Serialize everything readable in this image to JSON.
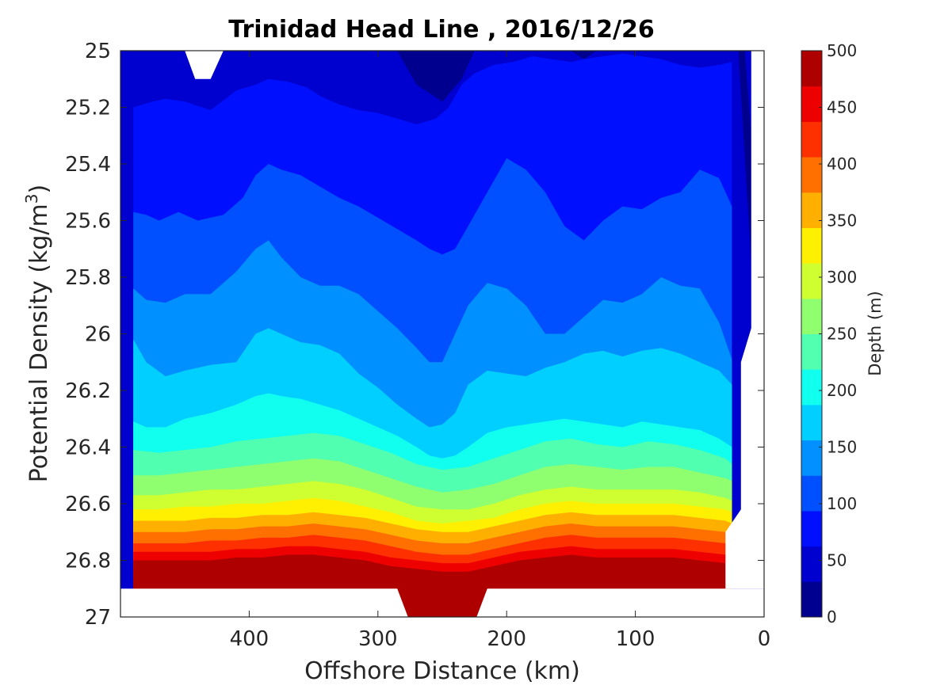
{
  "chart_data": {
    "type": "contour",
    "title": "Trinidad Head Line , 2016/12/26",
    "xlabel": "Offshore Distance (km)",
    "ylabel": "Potential Density (kg/m",
    "ylabel_sup": "3",
    "ylabel_close": ")",
    "x_reversed": true,
    "xlim": [
      0,
      500
    ],
    "ylim": [
      25,
      27
    ],
    "y_reversed": true,
    "x_ticks": [
      400,
      300,
      200,
      100,
      0
    ],
    "x_tick_labels": [
      "400",
      "300",
      "200",
      "100",
      "0"
    ],
    "y_ticks": [
      25,
      25.2,
      25.4,
      25.6,
      25.8,
      26,
      26.2,
      26.4,
      26.6,
      26.8,
      27
    ],
    "y_tick_labels": [
      "25",
      "25.2",
      "25.4",
      "25.6",
      "25.8",
      "26",
      "26.2",
      "26.4",
      "26.6",
      "26.8",
      "27"
    ],
    "grid": false,
    "colormap": "jet",
    "contour_levels": [
      0,
      25,
      50,
      75,
      100,
      125,
      150,
      175,
      200,
      225,
      250,
      275,
      300,
      325,
      350,
      375,
      400,
      425,
      450,
      475,
      500
    ],
    "level_colors": [
      "#00008f",
      "#0000cf",
      "#0010ff",
      "#0050ff",
      "#0090ff",
      "#00cfff",
      "#10ffef",
      "#50ffaf",
      "#90ff6f",
      "#cfff30",
      "#ffef00",
      "#ffaf00",
      "#ff7000",
      "#ff3000",
      "#ef0000",
      "#af0000"
    ],
    "contour_lines": [
      {
        "depth": 75,
        "x": [
          490,
          475,
          465,
          450,
          430,
          410,
          395,
          385,
          370,
          355,
          345,
          330,
          315,
          300,
          285,
          270,
          255,
          245,
          235,
          225,
          210,
          195,
          180,
          165,
          150,
          140,
          125,
          110,
          95,
          80,
          65,
          50,
          35,
          25
        ],
        "y": [
          25.2,
          25.18,
          25.17,
          25.18,
          25.21,
          25.14,
          25.12,
          25.1,
          25.11,
          25.13,
          25.16,
          25.19,
          25.21,
          25.22,
          25.24,
          25.26,
          25.24,
          25.2,
          25.12,
          25.08,
          25.05,
          25.04,
          25.02,
          25.03,
          25.04,
          25.03,
          25.02,
          25.01,
          25.02,
          25.03,
          25.05,
          25.06,
          25.05,
          25.04
        ]
      },
      {
        "depth": 100,
        "x": [
          490,
          480,
          470,
          455,
          440,
          420,
          405,
          395,
          385,
          375,
          360,
          345,
          330,
          315,
          300,
          285,
          270,
          260,
          250,
          240,
          230,
          215,
          200,
          185,
          170,
          155,
          140,
          125,
          110,
          95,
          80,
          65,
          50,
          35,
          25
        ],
        "y": [
          25.57,
          25.58,
          25.6,
          25.57,
          25.6,
          25.58,
          25.52,
          25.44,
          25.4,
          25.42,
          25.44,
          25.48,
          25.52,
          25.55,
          25.59,
          25.63,
          25.67,
          25.7,
          25.72,
          25.7,
          25.62,
          25.5,
          25.38,
          25.42,
          25.5,
          25.62,
          25.67,
          25.6,
          25.55,
          25.56,
          25.52,
          25.5,
          25.42,
          25.45,
          25.55
        ]
      },
      {
        "depth": 125,
        "x": [
          490,
          480,
          465,
          450,
          430,
          410,
          395,
          385,
          375,
          360,
          345,
          330,
          315,
          300,
          285,
          270,
          260,
          250,
          240,
          230,
          215,
          200,
          185,
          170,
          155,
          140,
          125,
          110,
          95,
          80,
          65,
          50,
          35,
          25
        ],
        "y": [
          25.84,
          25.88,
          25.89,
          25.86,
          25.86,
          25.78,
          25.7,
          25.67,
          25.73,
          25.8,
          25.83,
          25.83,
          25.86,
          25.92,
          25.98,
          26.05,
          26.1,
          26.1,
          26.0,
          25.9,
          25.82,
          25.84,
          25.9,
          26.0,
          26.0,
          25.94,
          25.88,
          25.89,
          25.86,
          25.8,
          25.83,
          25.84,
          25.96,
          26.09
        ]
      },
      {
        "depth": 150,
        "x": [
          490,
          480,
          465,
          450,
          430,
          410,
          395,
          385,
          375,
          360,
          345,
          330,
          315,
          300,
          285,
          270,
          260,
          250,
          240,
          230,
          215,
          200,
          185,
          170,
          155,
          140,
          125,
          110,
          95,
          80,
          65,
          50,
          35,
          25
        ],
        "y": [
          26.02,
          26.1,
          26.15,
          26.13,
          26.11,
          26.1,
          26.0,
          25.98,
          26.0,
          26.03,
          26.04,
          26.07,
          26.14,
          26.19,
          26.25,
          26.3,
          26.33,
          26.32,
          26.28,
          26.18,
          26.13,
          26.14,
          26.15,
          26.12,
          26.1,
          26.07,
          26.06,
          26.08,
          26.06,
          26.05,
          26.07,
          26.1,
          26.13,
          26.18
        ]
      },
      {
        "depth": 175,
        "x": [
          490,
          480,
          465,
          450,
          430,
          410,
          395,
          385,
          375,
          360,
          345,
          330,
          315,
          300,
          285,
          270,
          260,
          250,
          240,
          230,
          215,
          200,
          185,
          170,
          155,
          140,
          125,
          110,
          95,
          80,
          65,
          50,
          35,
          25
        ],
        "y": [
          26.31,
          26.33,
          26.33,
          26.3,
          26.28,
          26.25,
          26.22,
          26.21,
          26.22,
          26.23,
          26.25,
          26.27,
          26.3,
          26.33,
          26.36,
          26.4,
          26.43,
          26.44,
          26.43,
          26.4,
          26.35,
          26.33,
          26.32,
          26.31,
          26.3,
          26.31,
          26.32,
          26.33,
          26.31,
          26.32,
          26.33,
          26.34,
          26.37,
          26.4
        ]
      },
      {
        "depth": 200,
        "x": [
          490,
          470,
          450,
          430,
          410,
          390,
          370,
          350,
          330,
          310,
          290,
          270,
          250,
          230,
          210,
          190,
          170,
          150,
          130,
          110,
          90,
          70,
          50,
          30,
          25
        ],
        "y": [
          26.41,
          26.42,
          26.41,
          26.4,
          26.38,
          26.37,
          26.36,
          26.35,
          26.36,
          26.39,
          26.42,
          26.46,
          26.48,
          26.47,
          26.44,
          26.41,
          26.38,
          26.37,
          26.39,
          26.4,
          26.38,
          26.39,
          26.41,
          26.44,
          26.46
        ]
      },
      {
        "depth": 225,
        "x": [
          490,
          470,
          450,
          430,
          410,
          390,
          370,
          350,
          330,
          310,
          290,
          270,
          250,
          230,
          210,
          190,
          170,
          150,
          130,
          110,
          90,
          70,
          50,
          30,
          25
        ],
        "y": [
          26.5,
          26.5,
          26.49,
          26.48,
          26.47,
          26.46,
          26.45,
          26.44,
          26.45,
          26.48,
          26.51,
          26.54,
          26.56,
          26.55,
          26.53,
          26.5,
          26.47,
          26.46,
          26.47,
          26.48,
          26.47,
          26.47,
          26.49,
          26.51,
          26.52
        ]
      },
      {
        "depth": 250,
        "x": [
          490,
          470,
          450,
          430,
          410,
          390,
          370,
          350,
          330,
          310,
          290,
          270,
          250,
          230,
          210,
          190,
          170,
          150,
          130,
          110,
          90,
          70,
          50,
          30,
          25
        ],
        "y": [
          26.57,
          26.57,
          26.56,
          26.55,
          26.55,
          26.54,
          26.53,
          26.52,
          26.53,
          26.55,
          26.58,
          26.61,
          26.62,
          26.62,
          26.6,
          26.57,
          26.55,
          26.54,
          26.55,
          26.55,
          26.55,
          26.55,
          26.56,
          26.58,
          26.59
        ]
      },
      {
        "depth": 275,
        "x": [
          490,
          470,
          450,
          430,
          410,
          390,
          370,
          350,
          330,
          310,
          290,
          270,
          250,
          230,
          210,
          190,
          170,
          150,
          130,
          110,
          90,
          70,
          50,
          30,
          25
        ],
        "y": [
          26.62,
          26.62,
          26.61,
          26.61,
          26.6,
          26.6,
          26.59,
          26.58,
          26.59,
          26.61,
          26.63,
          26.66,
          26.67,
          26.66,
          26.65,
          26.62,
          26.6,
          26.59,
          26.6,
          26.6,
          26.6,
          26.6,
          26.61,
          26.62,
          26.63
        ]
      },
      {
        "depth": 300,
        "x": [
          490,
          470,
          450,
          430,
          410,
          390,
          370,
          350,
          330,
          310,
          290,
          270,
          250,
          230,
          210,
          190,
          170,
          150,
          130,
          110,
          90,
          70,
          50,
          30,
          25
        ],
        "y": [
          26.66,
          26.66,
          26.66,
          26.65,
          26.65,
          26.64,
          26.64,
          26.63,
          26.64,
          26.65,
          26.67,
          26.69,
          26.7,
          26.7,
          26.68,
          26.66,
          26.64,
          26.63,
          26.64,
          26.64,
          26.64,
          26.64,
          26.65,
          26.66,
          26.67
        ]
      },
      {
        "depth": 325,
        "x": [
          490,
          470,
          450,
          430,
          410,
          390,
          370,
          350,
          330,
          310,
          290,
          270,
          250,
          230,
          210,
          190,
          170,
          150,
          130,
          110,
          90,
          70,
          50,
          30,
          25
        ],
        "y": [
          26.7,
          26.7,
          26.7,
          26.69,
          26.69,
          26.68,
          26.68,
          26.67,
          26.68,
          26.69,
          26.71,
          26.73,
          26.74,
          26.74,
          26.72,
          26.7,
          26.68,
          26.67,
          26.68,
          26.68,
          26.68,
          26.68,
          26.69,
          26.7,
          26.71
        ]
      },
      {
        "depth": 350,
        "x": [
          490,
          470,
          450,
          430,
          410,
          390,
          370,
          350,
          330,
          310,
          290,
          270,
          250,
          230,
          210,
          190,
          170,
          150,
          130,
          110,
          90,
          70,
          50,
          30,
          25
        ],
        "y": [
          26.74,
          26.74,
          26.74,
          26.73,
          26.73,
          26.72,
          26.72,
          26.71,
          26.72,
          26.73,
          26.75,
          26.77,
          26.78,
          26.78,
          26.76,
          26.74,
          26.72,
          26.71,
          26.72,
          26.72,
          26.72,
          26.72,
          26.73,
          26.74,
          26.75
        ]
      },
      {
        "depth": 375,
        "x": [
          490,
          470,
          450,
          430,
          410,
          390,
          370,
          350,
          330,
          310,
          290,
          270,
          250,
          230,
          210,
          190,
          170,
          150,
          130,
          110,
          90,
          70,
          50,
          30,
          25
        ],
        "y": [
          26.77,
          26.77,
          26.77,
          26.77,
          26.76,
          26.76,
          26.75,
          26.75,
          26.76,
          26.77,
          26.79,
          26.8,
          26.81,
          26.81,
          26.79,
          26.77,
          26.76,
          26.75,
          26.76,
          26.76,
          26.76,
          26.76,
          26.77,
          26.78,
          26.78
        ]
      },
      {
        "depth": 400,
        "x": [
          490,
          470,
          450,
          430,
          410,
          390,
          370,
          350,
          330,
          310,
          290,
          270,
          250,
          230,
          210,
          190,
          170,
          150,
          130,
          110,
          90,
          70,
          50,
          30,
          25
        ],
        "y": [
          26.8,
          26.8,
          26.8,
          26.8,
          26.79,
          26.79,
          26.78,
          26.78,
          26.79,
          26.8,
          26.82,
          26.83,
          26.84,
          26.84,
          26.82,
          26.8,
          26.79,
          26.78,
          26.79,
          26.79,
          26.79,
          26.79,
          26.8,
          26.81,
          26.81
        ]
      },
      {
        "depth": 425,
        "x": [
          490,
          470,
          450,
          430,
          410,
          390,
          370,
          350,
          330,
          310,
          290,
          270,
          250,
          230,
          210,
          190,
          170,
          150,
          130,
          110,
          90,
          70,
          50,
          30,
          25
        ],
        "y": [
          26.83,
          26.83,
          26.83,
          26.83,
          26.82,
          26.82,
          26.81,
          26.81,
          26.82,
          26.83,
          26.85,
          26.86,
          26.87,
          26.87,
          26.85,
          26.83,
          26.82,
          26.81,
          26.82,
          26.82,
          26.82,
          26.82,
          26.83,
          26.84,
          26.84
        ]
      },
      {
        "depth": 450,
        "x": [
          490,
          470,
          450,
          430,
          410,
          390,
          370,
          350,
          330,
          310,
          290,
          270,
          250,
          230,
          210,
          190,
          170,
          150,
          130,
          110,
          90,
          70,
          50,
          30,
          25
        ],
        "y": [
          26.86,
          26.86,
          26.86,
          26.86,
          26.85,
          26.85,
          26.84,
          26.84,
          26.85,
          26.86,
          26.88,
          26.89,
          26.9,
          26.9,
          26.88,
          26.86,
          26.85,
          26.84,
          26.85,
          26.85,
          26.85,
          26.85,
          26.86,
          26.87,
          26.87
        ]
      },
      {
        "depth": 475,
        "x": [
          280,
          270,
          255,
          245,
          235,
          225,
          215
        ],
        "y": [
          26.96,
          26.96,
          26.95,
          26.95,
          26.95,
          26.96,
          26.96
        ]
      }
    ],
    "masked_regions": [
      {
        "region": "top-notch",
        "x": [
          450,
          442,
          430,
          420
        ],
        "y": [
          25,
          25.1,
          25.1,
          25
        ]
      },
      {
        "region": "bottom-shelf",
        "x": [
          490,
          280,
          270,
          227,
          215,
          30,
          30,
          18,
          18,
          10,
          10,
          0,
          0,
          490
        ],
        "y": [
          26.9,
          26.9,
          27,
          27,
          26.9,
          26.9,
          26.7,
          26.62,
          26.1,
          26.0,
          25.0,
          25.0,
          27,
          27
        ]
      },
      {
        "region": "nearshore-gap",
        "x": [
          10,
          0,
          0,
          10
        ],
        "y": [
          25,
          25,
          27,
          27
        ]
      }
    ],
    "colorbar": {
      "label": "Depth (m)",
      "ticks": [
        0,
        50,
        100,
        150,
        200,
        250,
        300,
        350,
        400,
        450,
        500
      ],
      "tick_labels": [
        "0",
        "50",
        "100",
        "150",
        "200",
        "250",
        "300",
        "350",
        "400",
        "450",
        "500"
      ],
      "range": [
        0,
        500
      ]
    }
  }
}
